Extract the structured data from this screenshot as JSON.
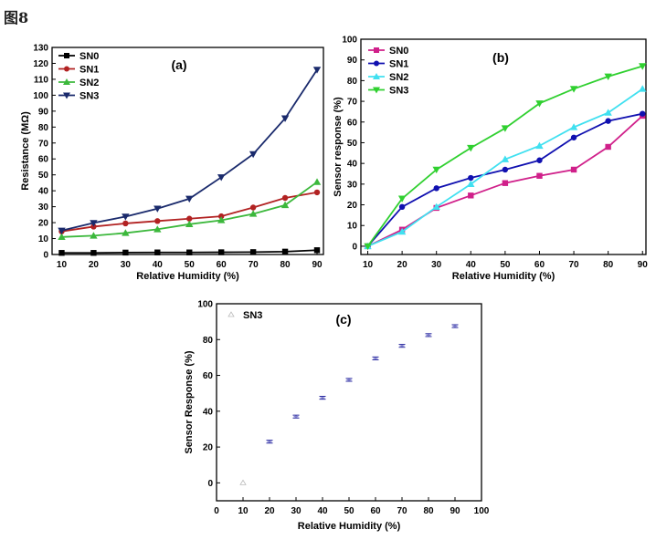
{
  "figure_label": "图8",
  "chart_data": [
    {
      "id": "a",
      "type": "line",
      "title": "(a)",
      "xlabel": "Relative Humidity (%)",
      "ylabel": "Resistance (MΩ)",
      "xlim": [
        7,
        92
      ],
      "ylim": [
        0,
        130
      ],
      "xticks": [
        10,
        20,
        30,
        40,
        50,
        60,
        70,
        80,
        90
      ],
      "yticks": [
        0,
        10,
        20,
        30,
        40,
        50,
        60,
        70,
        80,
        90,
        100,
        110,
        120,
        130
      ],
      "x": [
        10,
        20,
        30,
        40,
        50,
        60,
        70,
        80,
        90
      ],
      "legend_position": "top-left",
      "series": [
        {
          "name": "SN0",
          "color": "#000000",
          "marker": "square",
          "values": [
            1,
            1,
            1.2,
            1.3,
            1.3,
            1.4,
            1.5,
            1.8,
            2.7
          ]
        },
        {
          "name": "SN1",
          "color": "#b22222",
          "marker": "circle",
          "values": [
            14.5,
            17.5,
            19.5,
            21,
            22.5,
            24,
            29.5,
            35.5,
            39
          ]
        },
        {
          "name": "SN2",
          "color": "#3cb83c",
          "marker": "triangle-up",
          "values": [
            11,
            11.8,
            13.5,
            15.8,
            19,
            21.5,
            25.5,
            31,
            45.5
          ]
        },
        {
          "name": "SN3",
          "color": "#1a2a6c",
          "marker": "triangle-down",
          "values": [
            15,
            19.8,
            23.8,
            28.8,
            35,
            48.5,
            63,
            85.5,
            116
          ]
        }
      ]
    },
    {
      "id": "b",
      "type": "line",
      "title": "(b)",
      "xlabel": "Relative Humidity (%)",
      "ylabel": "Sensor response (%)",
      "xlim": [
        8,
        91
      ],
      "ylim": [
        -4,
        100
      ],
      "xticks": [
        10,
        20,
        30,
        40,
        50,
        60,
        70,
        80,
        90
      ],
      "yticks": [
        0,
        10,
        20,
        30,
        40,
        50,
        60,
        70,
        80,
        90,
        100
      ],
      "x": [
        10,
        20,
        30,
        40,
        50,
        60,
        70,
        80,
        90
      ],
      "legend_position": "top-left",
      "series": [
        {
          "name": "SN0",
          "color": "#d0208a",
          "marker": "square",
          "values": [
            0,
            8,
            18.5,
            24.5,
            30.5,
            34,
            37,
            48,
            63
          ]
        },
        {
          "name": "SN1",
          "color": "#1010b0",
          "marker": "circle",
          "values": [
            0,
            19,
            28,
            33,
            37,
            41.5,
            52.5,
            60.5,
            64
          ]
        },
        {
          "name": "SN2",
          "color": "#40e0f0",
          "marker": "triangle-up",
          "values": [
            0,
            7,
            19,
            30,
            42,
            48.5,
            57.5,
            64.5,
            76
          ]
        },
        {
          "name": "SN3",
          "color": "#30d030",
          "marker": "triangle-down",
          "values": [
            0,
            23,
            37,
            47.5,
            57,
            69,
            76,
            82,
            87
          ]
        }
      ]
    },
    {
      "id": "c",
      "type": "scatter",
      "title": "(c)",
      "xlabel": "Relative Humidity (%)",
      "ylabel": "Sensor Response (%)",
      "xlim": [
        0,
        100
      ],
      "ylim": [
        -10,
        100
      ],
      "xticks": [
        0,
        10,
        20,
        30,
        40,
        50,
        60,
        70,
        80,
        90,
        100
      ],
      "yticks": [
        0,
        20,
        40,
        60,
        80,
        100
      ],
      "x": [
        10,
        20,
        30,
        40,
        50,
        60,
        70,
        80,
        90
      ],
      "legend_position": "top-left",
      "series": [
        {
          "name": "SN3",
          "color": "#2a2aa0",
          "marker": "errorbar",
          "values": [
            0,
            23,
            37,
            47.5,
            57.5,
            69.5,
            76.5,
            82.5,
            87.5
          ],
          "error": [
            0.8,
            0.8,
            0.8,
            0.8,
            0.8,
            0.8,
            0.8,
            0.8,
            0.8
          ]
        }
      ]
    }
  ]
}
